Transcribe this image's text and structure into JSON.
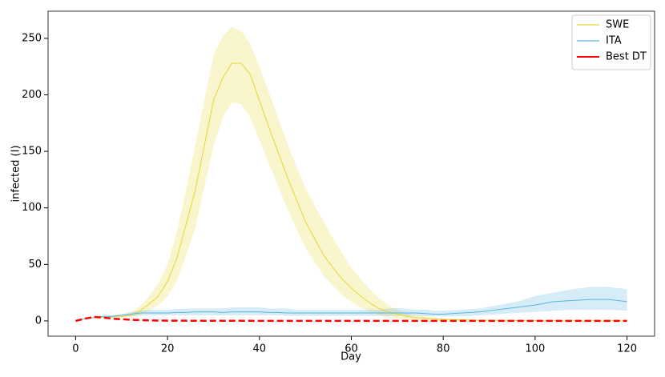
{
  "chart_data": {
    "type": "line",
    "xlabel": "Day",
    "ylabel": "infected (I)",
    "x": [
      0,
      2,
      4,
      6,
      8,
      10,
      12,
      14,
      16,
      18,
      20,
      22,
      24,
      26,
      28,
      30,
      32,
      34,
      36,
      38,
      40,
      42,
      44,
      46,
      48,
      50,
      52,
      54,
      56,
      58,
      60,
      62,
      64,
      66,
      68,
      70,
      72,
      74,
      76,
      78,
      80,
      84,
      88,
      92,
      96,
      100,
      104,
      108,
      112,
      116,
      120
    ],
    "series": [
      {
        "name": "SWE",
        "color": "#e6d832",
        "linestyle": "solid",
        "values": [
          0,
          2,
          3,
          3,
          3.5,
          4,
          5,
          9,
          15,
          22,
          35,
          55,
          85,
          115,
          155,
          195,
          215,
          228,
          228,
          218,
          195,
          172,
          150,
          128,
          108,
          88,
          73,
          58,
          47,
          37,
          29,
          22,
          16,
          11,
          8,
          6,
          4,
          3,
          2.5,
          2,
          1.5,
          1,
          0.5,
          0.5,
          0.3,
          0.2,
          0.2,
          0.1,
          0.1,
          0.1,
          0.1
        ],
        "upper": [
          0,
          2,
          3,
          3.5,
          4,
          5,
          7,
          13,
          22,
          33,
          50,
          78,
          115,
          155,
          195,
          235,
          252,
          260,
          257,
          245,
          225,
          203,
          180,
          158,
          137,
          118,
          102,
          88,
          73,
          60,
          47,
          37,
          28,
          20,
          14,
          10,
          7,
          5,
          4,
          3,
          2,
          1.5,
          1,
          1,
          0.8,
          0.5,
          0.5,
          0.4,
          0.3,
          0.3,
          0.3
        ],
        "lower": [
          0,
          2,
          3,
          2.5,
          3,
          3,
          3.5,
          5,
          9,
          14,
          22,
          35,
          58,
          82,
          118,
          155,
          180,
          193,
          192,
          180,
          160,
          140,
          120,
          100,
          82,
          65,
          52,
          40,
          31,
          23,
          17,
          12,
          8,
          5,
          3,
          2,
          1,
          0.5,
          0.3,
          0.2,
          0.1,
          0,
          0,
          0,
          0,
          0,
          0,
          0,
          0,
          0,
          0
        ]
      },
      {
        "name": "ITA",
        "color": "#5ab4e0",
        "linestyle": "solid",
        "values": [
          0,
          2,
          3,
          4,
          4,
          5,
          6,
          7,
          7,
          7,
          7,
          7.5,
          7.5,
          8,
          8,
          8,
          7.5,
          8,
          8,
          8,
          8,
          7.5,
          7.5,
          7,
          7,
          7,
          7,
          7,
          7,
          7,
          7,
          7,
          7,
          7,
          7,
          7,
          7,
          7,
          6.5,
          6,
          6,
          7,
          8,
          10,
          12,
          14,
          17,
          18,
          19,
          19,
          17
        ],
        "upper": [
          0,
          2,
          3,
          4.5,
          5,
          6,
          8,
          9,
          10,
          10,
          10,
          10.5,
          11,
          11,
          11,
          11,
          11,
          12,
          12,
          12,
          12,
          11,
          11,
          11,
          10,
          10,
          10,
          10,
          10,
          10,
          10,
          10,
          10,
          10,
          11,
          11,
          11,
          10,
          10,
          9,
          9,
          10,
          11,
          14,
          17,
          22,
          25,
          28,
          30,
          30,
          28
        ],
        "lower": [
          0,
          2,
          3,
          3.5,
          3.5,
          4,
          4,
          5,
          5,
          5,
          5,
          5,
          5,
          5,
          5,
          5,
          5,
          5,
          5,
          5,
          5,
          5,
          5,
          4.5,
          4.5,
          4.5,
          4.5,
          4.5,
          4.5,
          4.5,
          4.5,
          4.5,
          4.5,
          4.5,
          4.5,
          4.5,
          4.5,
          4.5,
          4,
          4,
          4,
          4,
          5,
          6,
          7,
          8,
          9,
          10,
          10,
          10,
          9
        ]
      },
      {
        "name": "Best DT",
        "color": "#ff0000",
        "linestyle": "dashed",
        "values": [
          0,
          2,
          3.5,
          3,
          2,
          1.5,
          1,
          0.7,
          0.5,
          0.3,
          0.2,
          0.2,
          0.2,
          0.1,
          0.1,
          0.1,
          0.1,
          0.1,
          0.1,
          0.1,
          0,
          0,
          0,
          0,
          0,
          0,
          0,
          0,
          0,
          0,
          0,
          0,
          0,
          0,
          0,
          0,
          0,
          0,
          0,
          0,
          0,
          0,
          0,
          0,
          0,
          0,
          0,
          0,
          0,
          0,
          0
        ]
      }
    ],
    "xlim": [
      -6,
      126
    ],
    "ylim": [
      -13.5,
      274
    ],
    "xticks": [
      0,
      20,
      40,
      60,
      80,
      100,
      120
    ],
    "yticks": [
      0,
      50,
      100,
      150,
      200,
      250
    ],
    "legend": "upper right"
  }
}
